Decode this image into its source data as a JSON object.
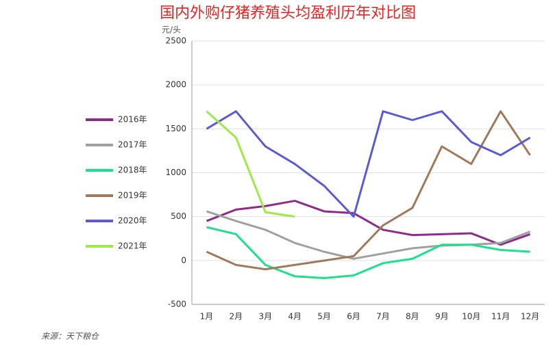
{
  "chart_data": {
    "type": "line",
    "title": "国内外购仔猪养殖头均盈利历年对比图",
    "y_unit": "元/头",
    "source": "来源：天下粮仓",
    "categories": [
      "1月",
      "2月",
      "3月",
      "4月",
      "5月",
      "6月",
      "7月",
      "8月",
      "9月",
      "10月",
      "11月",
      "12月"
    ],
    "series": [
      {
        "name": "2016年",
        "color": "#8e2a8c",
        "values": [
          450,
          580,
          620,
          680,
          560,
          540,
          350,
          290,
          300,
          310,
          180,
          300
        ]
      },
      {
        "name": "2017年",
        "color": "#a0a0a0",
        "values": [
          560,
          450,
          350,
          200,
          100,
          20,
          80,
          140,
          170,
          180,
          200,
          330
        ]
      },
      {
        "name": "2018年",
        "color": "#1de08c",
        "values": [
          380,
          300,
          -50,
          -180,
          -200,
          -170,
          -30,
          20,
          180,
          180,
          120,
          100
        ]
      },
      {
        "name": "2019年",
        "color": "#a0785a",
        "values": [
          100,
          -50,
          -100,
          -50,
          0,
          50,
          400,
          600,
          1300,
          1100,
          1700,
          1200
        ]
      },
      {
        "name": "2020年",
        "color": "#5a5ad8",
        "values": [
          1500,
          1700,
          1300,
          1100,
          850,
          500,
          1700,
          1600,
          1700,
          1350,
          1200,
          1400
        ]
      },
      {
        "name": "2021年",
        "color": "#9ee84a",
        "values": [
          1700,
          1400,
          550,
          500,
          null,
          null,
          null,
          null,
          null,
          null,
          null,
          null
        ]
      }
    ],
    "ylim": [
      -500,
      2500
    ],
    "yticks": [
      -500,
      0,
      500,
      1000,
      1500,
      2000,
      2500
    ],
    "grid": true,
    "legend": "left"
  }
}
